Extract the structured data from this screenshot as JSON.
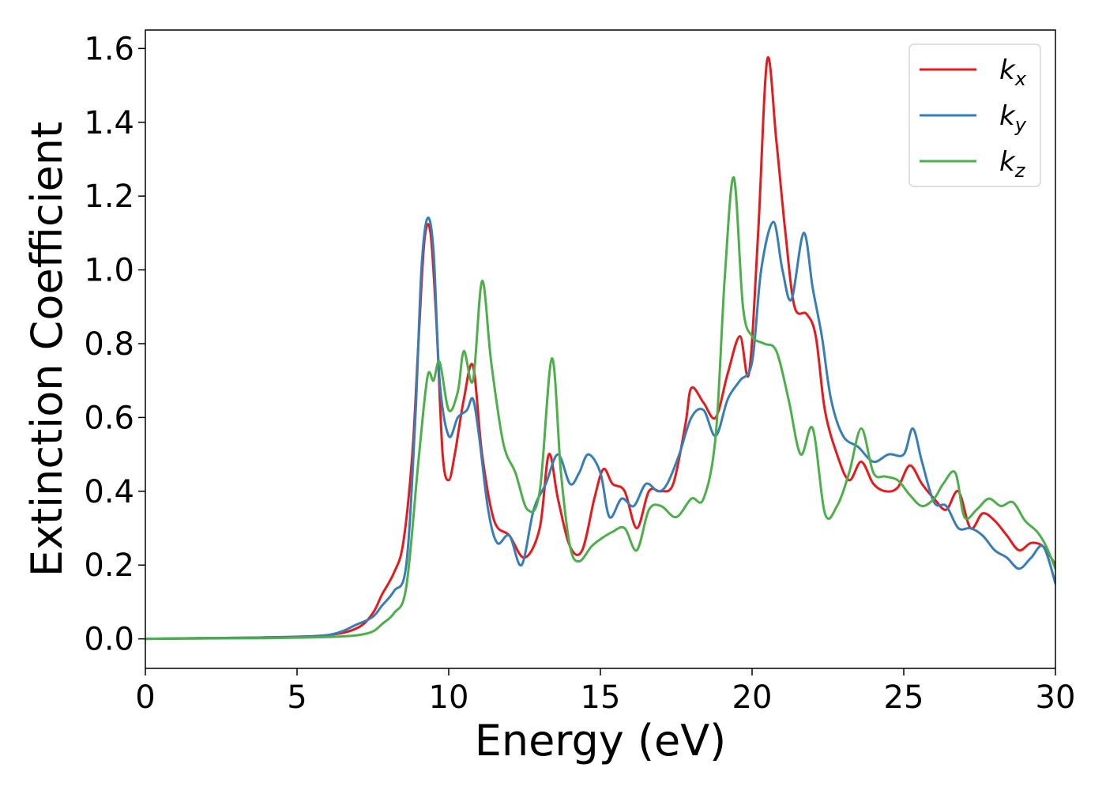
{
  "chart_data": {
    "type": "line",
    "xlabel": "Energy (eV)",
    "ylabel": "Extinction Coefficient",
    "xlim": [
      0,
      30
    ],
    "ylim": [
      -0.08,
      1.65
    ],
    "x_ticks": [
      0,
      5,
      10,
      15,
      20,
      25,
      30
    ],
    "x_tick_labels": [
      "0",
      "5",
      "10",
      "15",
      "20",
      "25",
      "30"
    ],
    "y_ticks": [
      0.0,
      0.2,
      0.4,
      0.6,
      0.8,
      1.0,
      1.2,
      1.4,
      1.6
    ],
    "y_tick_labels": [
      "0.0",
      "0.2",
      "0.4",
      "0.6",
      "0.8",
      "1.0",
      "1.2",
      "1.4",
      "1.6"
    ],
    "grid": false,
    "legend": "top-right",
    "series": [
      {
        "name": "k_x",
        "label_main": "k",
        "label_sub": "x",
        "color": "#e41a1c",
        "x": [
          0,
          2,
          4,
          6,
          7,
          7.5,
          7.8,
          8.2,
          8.5,
          8.8,
          9.0,
          9.2,
          9.4,
          9.6,
          9.8,
          10.0,
          10.2,
          10.5,
          10.8,
          11.1,
          11.5,
          12.0,
          12.5,
          13.0,
          13.3,
          13.6,
          14.0,
          14.4,
          14.8,
          15.1,
          15.4,
          15.8,
          16.2,
          16.6,
          17.0,
          17.4,
          17.8,
          18.0,
          18.4,
          18.8,
          19.2,
          19.6,
          19.9,
          20.2,
          20.5,
          20.8,
          21.1,
          21.4,
          21.8,
          22.1,
          22.4,
          22.8,
          23.2,
          23.6,
          24.0,
          24.4,
          24.8,
          25.2,
          25.6,
          26.0,
          26.4,
          26.8,
          27.2,
          27.6,
          28.0,
          28.4,
          28.8,
          29.2,
          29.6,
          30.0
        ],
        "y": [
          0.0,
          0.002,
          0.004,
          0.01,
          0.03,
          0.07,
          0.12,
          0.18,
          0.26,
          0.5,
          0.8,
          1.08,
          1.1,
          0.85,
          0.5,
          0.43,
          0.5,
          0.65,
          0.74,
          0.5,
          0.32,
          0.28,
          0.22,
          0.3,
          0.5,
          0.38,
          0.25,
          0.24,
          0.38,
          0.46,
          0.42,
          0.4,
          0.3,
          0.4,
          0.4,
          0.42,
          0.58,
          0.68,
          0.64,
          0.6,
          0.72,
          0.82,
          0.72,
          1.1,
          1.57,
          1.35,
          1.1,
          0.9,
          0.88,
          0.82,
          0.62,
          0.5,
          0.43,
          0.48,
          0.42,
          0.4,
          0.41,
          0.47,
          0.42,
          0.38,
          0.35,
          0.4,
          0.3,
          0.34,
          0.32,
          0.28,
          0.24,
          0.26,
          0.25,
          0.2
        ]
      },
      {
        "name": "k_y",
        "label_main": "k",
        "label_sub": "y",
        "color": "#377eb8",
        "x": [
          0,
          2,
          4,
          6,
          7,
          7.5,
          7.8,
          8.2,
          8.6,
          8.9,
          9.1,
          9.3,
          9.5,
          9.7,
          10.0,
          10.3,
          10.6,
          10.8,
          11.0,
          11.3,
          11.6,
          12.0,
          12.4,
          12.8,
          13.2,
          13.6,
          14.0,
          14.3,
          14.6,
          15.0,
          15.3,
          15.7,
          16.1,
          16.5,
          16.9,
          17.2,
          17.6,
          18.0,
          18.4,
          18.8,
          19.2,
          19.6,
          20.0,
          20.3,
          20.7,
          21.0,
          21.3,
          21.7,
          22.0,
          22.3,
          22.6,
          23.0,
          23.5,
          24.0,
          24.5,
          25.0,
          25.3,
          25.6,
          26.0,
          26.4,
          26.8,
          27.2,
          27.6,
          28.0,
          28.4,
          28.8,
          29.2,
          29.6,
          30.0
        ],
        "y": [
          0.0,
          0.002,
          0.004,
          0.01,
          0.04,
          0.06,
          0.09,
          0.13,
          0.2,
          0.6,
          1.0,
          1.14,
          1.05,
          0.7,
          0.55,
          0.6,
          0.62,
          0.65,
          0.55,
          0.35,
          0.26,
          0.28,
          0.2,
          0.35,
          0.42,
          0.5,
          0.42,
          0.45,
          0.5,
          0.45,
          0.33,
          0.38,
          0.36,
          0.42,
          0.4,
          0.42,
          0.5,
          0.6,
          0.62,
          0.55,
          0.65,
          0.7,
          0.75,
          1.0,
          1.13,
          1.0,
          0.92,
          1.1,
          0.95,
          0.82,
          0.65,
          0.55,
          0.52,
          0.48,
          0.5,
          0.5,
          0.57,
          0.48,
          0.37,
          0.36,
          0.3,
          0.3,
          0.28,
          0.24,
          0.22,
          0.19,
          0.22,
          0.25,
          0.15
        ]
      },
      {
        "name": "k_z",
        "label_main": "k",
        "label_sub": "z",
        "color": "#4daf4a",
        "x": [
          0,
          2,
          4,
          6,
          7,
          7.5,
          7.8,
          8.2,
          8.6,
          9.0,
          9.3,
          9.5,
          9.7,
          10.0,
          10.3,
          10.5,
          10.8,
          11.1,
          11.4,
          11.8,
          12.2,
          12.6,
          13.0,
          13.4,
          13.7,
          14.0,
          14.3,
          14.7,
          15.0,
          15.4,
          15.8,
          16.2,
          16.6,
          17.0,
          17.5,
          18.0,
          18.4,
          18.8,
          19.1,
          19.4,
          19.7,
          20.0,
          20.4,
          20.8,
          21.2,
          21.6,
          22.0,
          22.4,
          22.8,
          23.2,
          23.6,
          24.0,
          24.4,
          24.8,
          25.2,
          25.6,
          26.0,
          26.3,
          26.7,
          27.0,
          27.4,
          27.8,
          28.2,
          28.6,
          29.0,
          29.4,
          29.7,
          30.0
        ],
        "y": [
          0.0,
          0.001,
          0.002,
          0.005,
          0.01,
          0.02,
          0.04,
          0.07,
          0.14,
          0.48,
          0.71,
          0.7,
          0.75,
          0.62,
          0.67,
          0.78,
          0.7,
          0.97,
          0.75,
          0.53,
          0.45,
          0.35,
          0.4,
          0.76,
          0.45,
          0.25,
          0.21,
          0.25,
          0.27,
          0.29,
          0.3,
          0.24,
          0.35,
          0.36,
          0.33,
          0.38,
          0.38,
          0.55,
          0.98,
          1.25,
          0.9,
          0.82,
          0.8,
          0.78,
          0.65,
          0.5,
          0.57,
          0.34,
          0.36,
          0.45,
          0.57,
          0.45,
          0.44,
          0.43,
          0.39,
          0.36,
          0.38,
          0.42,
          0.45,
          0.33,
          0.35,
          0.38,
          0.36,
          0.37,
          0.32,
          0.29,
          0.25,
          0.19
        ]
      }
    ]
  }
}
